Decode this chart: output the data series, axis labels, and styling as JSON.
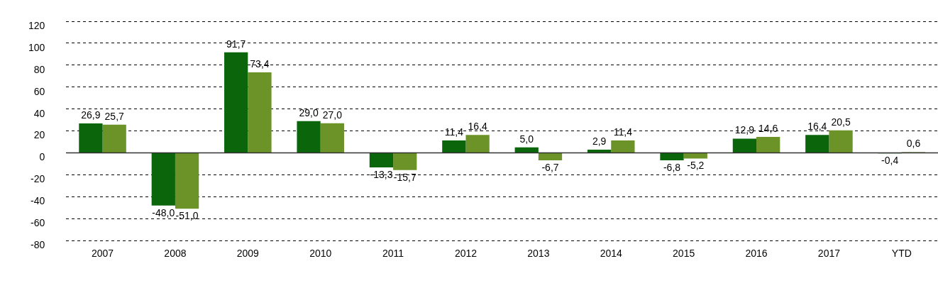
{
  "chart_data": {
    "type": "bar",
    "categories": [
      "2007",
      "2008",
      "2009",
      "2010",
      "2011",
      "2012",
      "2013",
      "2014",
      "2015",
      "2016",
      "2017",
      "YTD"
    ],
    "series": [
      {
        "color": "#0b650b",
        "values": [
          26.9,
          -48.0,
          91.7,
          29.0,
          -13.3,
          11.4,
          5.0,
          2.9,
          -6.8,
          12.9,
          16.4,
          -0.4
        ],
        "value_labels": [
          "26,9",
          "-48,0",
          "91,7",
          "29,0",
          "-13,3",
          "11,4",
          "5,0",
          "2,9",
          "-6,8",
          "12,9",
          "16,4",
          "-0,4"
        ]
      },
      {
        "color": "#6b9328",
        "values": [
          25.7,
          -51.0,
          73.4,
          27.0,
          -15.7,
          16.4,
          -6.7,
          11.4,
          -5.2,
          14.6,
          20.5,
          0.6
        ],
        "value_labels": [
          "25,7",
          "-51,0",
          "73,4",
          "27,0",
          "-15,7",
          "16,4",
          "-6,7",
          "11,4",
          "-5,2",
          "14,6",
          "20,5",
          "0,6"
        ]
      }
    ],
    "ylim": [
      -80,
      120
    ],
    "yticks": [
      -80,
      -60,
      -40,
      -20,
      0,
      20,
      40,
      60,
      80,
      100,
      120
    ],
    "grid": "y",
    "ref_lines": [
      {
        "axis": "y",
        "value": 0,
        "color": "#333333"
      }
    ],
    "legend": false
  }
}
